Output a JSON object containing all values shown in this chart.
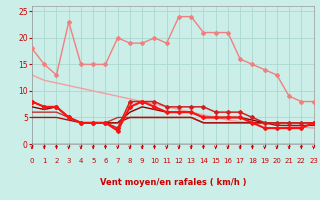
{
  "bg_color": "#cceee8",
  "grid_color": "#aad8d0",
  "xlim": [
    0,
    23
  ],
  "ylim": [
    0,
    26
  ],
  "yticks": [
    0,
    5,
    10,
    15,
    20,
    25
  ],
  "xticks": [
    0,
    1,
    2,
    3,
    4,
    5,
    6,
    7,
    8,
    9,
    10,
    11,
    12,
    13,
    14,
    15,
    16,
    17,
    18,
    19,
    20,
    21,
    22,
    23
  ],
  "xlabel": "Vent moyen/en rafales ( km/h )",
  "lines": [
    {
      "y": [
        18,
        15,
        13,
        23,
        15,
        15,
        15,
        20,
        19,
        19,
        20,
        19,
        24,
        24,
        21,
        21,
        21,
        16,
        15,
        14,
        13,
        9,
        8,
        8
      ],
      "color": "#f08080",
      "lw": 1.0,
      "marker": "D",
      "ms": 2.0,
      "zorder": 3
    },
    {
      "y": [
        13,
        12,
        11.5,
        11,
        10.5,
        10,
        9.5,
        9,
        8.5,
        8,
        7.5,
        7,
        6.5,
        6,
        5.5,
        5,
        4.5,
        4.2,
        4.0,
        3.8,
        3.6,
        3.4,
        3.2,
        3.0
      ],
      "color": "#f0a0a0",
      "lw": 1.0,
      "marker": null,
      "ms": 0,
      "zorder": 2
    },
    {
      "y": [
        8,
        7,
        7,
        5,
        4,
        4,
        4,
        3,
        8,
        8,
        8,
        7,
        7,
        7,
        7,
        6,
        6,
        6,
        5,
        4,
        4,
        4,
        4,
        4
      ],
      "color": "#cc2222",
      "lw": 1.1,
      "marker": "D",
      "ms": 2.0,
      "zorder": 4
    },
    {
      "y": [
        8,
        7,
        7,
        5,
        4,
        4,
        4,
        2.5,
        7,
        8,
        7,
        6,
        6,
        6,
        5,
        5,
        5,
        5,
        4,
        3,
        3,
        3,
        3,
        4
      ],
      "color": "#ff1010",
      "lw": 1.5,
      "marker": "D",
      "ms": 2.0,
      "zorder": 5
    },
    {
      "y": [
        7,
        6.5,
        7,
        5,
        4,
        4,
        4,
        4,
        6,
        7,
        6.5,
        6,
        6,
        6,
        5,
        5,
        5,
        5,
        4.5,
        4,
        4,
        4,
        4,
        4
      ],
      "color": "#880000",
      "lw": 1.0,
      "marker": null,
      "ms": 0,
      "zorder": 3
    },
    {
      "y": [
        6,
        6,
        6,
        5,
        4,
        4,
        4,
        5,
        5,
        5,
        5,
        5,
        5,
        5,
        4,
        4,
        4,
        4,
        4,
        4,
        4,
        4,
        4,
        4
      ],
      "color": "#bb3333",
      "lw": 1.0,
      "marker": null,
      "ms": 0,
      "zorder": 3
    },
    {
      "y": [
        5,
        5,
        5,
        4.5,
        4,
        4,
        4,
        4,
        5,
        5,
        5,
        5,
        5,
        5,
        4,
        4,
        4,
        4,
        4,
        4,
        3.5,
        3.5,
        3.5,
        3.5
      ],
      "color": "#aa1111",
      "lw": 1.0,
      "marker": null,
      "ms": 0,
      "zorder": 3
    }
  ],
  "arrow_color": "#cc0000",
  "font_color": "#cc0000",
  "tick_color": "#cc0000",
  "xlabel_fontsize": 6.0,
  "tick_fontsize_x": 5.0,
  "tick_fontsize_y": 5.5
}
